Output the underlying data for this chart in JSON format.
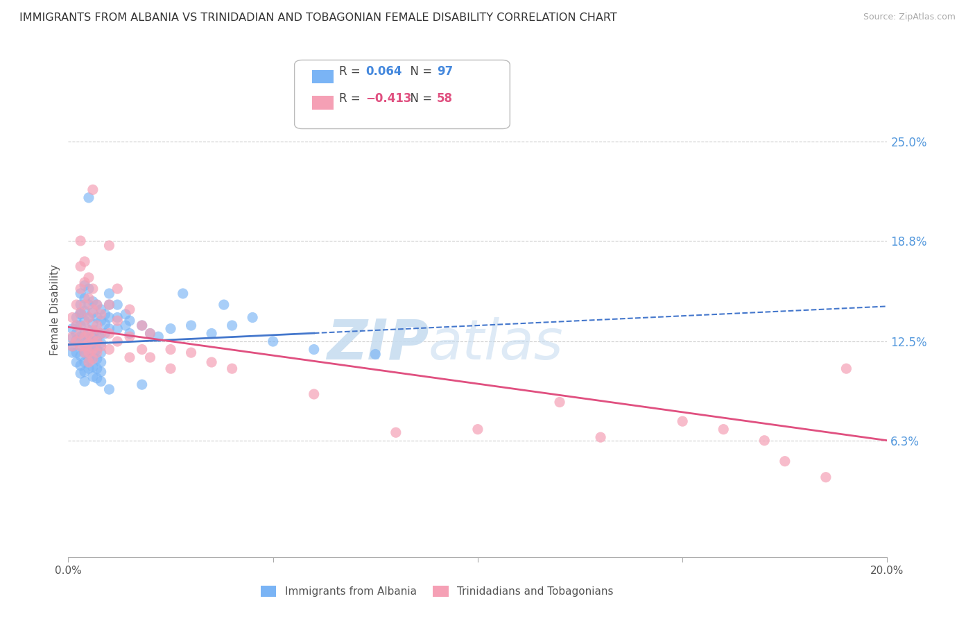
{
  "title": "IMMIGRANTS FROM ALBANIA VS TRINIDADIAN AND TOBAGONIAN FEMALE DISABILITY CORRELATION CHART",
  "source": "Source: ZipAtlas.com",
  "ylabel": "Female Disability",
  "albania_color": "#7ab4f5",
  "trinidad_color": "#f5a0b5",
  "albania_trend_color": "#4477cc",
  "trinidad_trend_color": "#e05080",
  "watermark_zip": "ZIP",
  "watermark_atlas": "atlas",
  "xlim": [
    0.0,
    0.2
  ],
  "ylim": [
    -0.01,
    0.3
  ],
  "ytick_vals": [
    0.063,
    0.125,
    0.188,
    0.25
  ],
  "ytick_labels": [
    "6.3%",
    "12.5%",
    "18.8%",
    "25.0%"
  ],
  "blue_trend": [
    0.123,
    0.147
  ],
  "pink_trend": [
    0.134,
    0.063
  ],
  "blue_scatter": [
    [
      0.001,
      0.127
    ],
    [
      0.001,
      0.133
    ],
    [
      0.001,
      0.118
    ],
    [
      0.001,
      0.122
    ],
    [
      0.002,
      0.14
    ],
    [
      0.002,
      0.13
    ],
    [
      0.002,
      0.118
    ],
    [
      0.002,
      0.112
    ],
    [
      0.002,
      0.126
    ],
    [
      0.002,
      0.135
    ],
    [
      0.003,
      0.148
    ],
    [
      0.003,
      0.142
    ],
    [
      0.003,
      0.135
    ],
    [
      0.003,
      0.128
    ],
    [
      0.003,
      0.122
    ],
    [
      0.003,
      0.116
    ],
    [
      0.003,
      0.11
    ],
    [
      0.003,
      0.105
    ],
    [
      0.003,
      0.155
    ],
    [
      0.003,
      0.143
    ],
    [
      0.004,
      0.152
    ],
    [
      0.004,
      0.144
    ],
    [
      0.004,
      0.138
    ],
    [
      0.004,
      0.13
    ],
    [
      0.004,
      0.124
    ],
    [
      0.004,
      0.118
    ],
    [
      0.004,
      0.112
    ],
    [
      0.004,
      0.106
    ],
    [
      0.004,
      0.1
    ],
    [
      0.004,
      0.16
    ],
    [
      0.005,
      0.158
    ],
    [
      0.005,
      0.148
    ],
    [
      0.005,
      0.14
    ],
    [
      0.005,
      0.132
    ],
    [
      0.005,
      0.126
    ],
    [
      0.005,
      0.12
    ],
    [
      0.005,
      0.114
    ],
    [
      0.005,
      0.108
    ],
    [
      0.005,
      0.215
    ],
    [
      0.006,
      0.15
    ],
    [
      0.006,
      0.143
    ],
    [
      0.006,
      0.136
    ],
    [
      0.006,
      0.128
    ],
    [
      0.006,
      0.122
    ],
    [
      0.006,
      0.115
    ],
    [
      0.006,
      0.109
    ],
    [
      0.006,
      0.103
    ],
    [
      0.007,
      0.148
    ],
    [
      0.007,
      0.14
    ],
    [
      0.007,
      0.132
    ],
    [
      0.007,
      0.126
    ],
    [
      0.007,
      0.12
    ],
    [
      0.007,
      0.114
    ],
    [
      0.007,
      0.108
    ],
    [
      0.007,
      0.102
    ],
    [
      0.008,
      0.145
    ],
    [
      0.008,
      0.138
    ],
    [
      0.008,
      0.13
    ],
    [
      0.008,
      0.124
    ],
    [
      0.008,
      0.118
    ],
    [
      0.008,
      0.112
    ],
    [
      0.008,
      0.106
    ],
    [
      0.008,
      0.1
    ],
    [
      0.009,
      0.142
    ],
    [
      0.009,
      0.136
    ],
    [
      0.009,
      0.13
    ],
    [
      0.01,
      0.155
    ],
    [
      0.01,
      0.148
    ],
    [
      0.01,
      0.14
    ],
    [
      0.01,
      0.133
    ],
    [
      0.01,
      0.095
    ],
    [
      0.012,
      0.148
    ],
    [
      0.012,
      0.14
    ],
    [
      0.012,
      0.133
    ],
    [
      0.014,
      0.142
    ],
    [
      0.014,
      0.135
    ],
    [
      0.015,
      0.138
    ],
    [
      0.015,
      0.13
    ],
    [
      0.018,
      0.135
    ],
    [
      0.018,
      0.098
    ],
    [
      0.02,
      0.13
    ],
    [
      0.022,
      0.128
    ],
    [
      0.025,
      0.133
    ],
    [
      0.028,
      0.155
    ],
    [
      0.03,
      0.135
    ],
    [
      0.035,
      0.13
    ],
    [
      0.038,
      0.148
    ],
    [
      0.04,
      0.135
    ],
    [
      0.045,
      0.14
    ],
    [
      0.05,
      0.125
    ],
    [
      0.06,
      0.12
    ],
    [
      0.075,
      0.117
    ]
  ],
  "pink_scatter": [
    [
      0.001,
      0.128
    ],
    [
      0.001,
      0.14
    ],
    [
      0.001,
      0.122
    ],
    [
      0.002,
      0.148
    ],
    [
      0.002,
      0.135
    ],
    [
      0.002,
      0.125
    ],
    [
      0.003,
      0.188
    ],
    [
      0.003,
      0.172
    ],
    [
      0.003,
      0.158
    ],
    [
      0.003,
      0.143
    ],
    [
      0.003,
      0.13
    ],
    [
      0.003,
      0.122
    ],
    [
      0.004,
      0.175
    ],
    [
      0.004,
      0.162
    ],
    [
      0.004,
      0.148
    ],
    [
      0.004,
      0.135
    ],
    [
      0.004,
      0.128
    ],
    [
      0.004,
      0.122
    ],
    [
      0.004,
      0.118
    ],
    [
      0.005,
      0.165
    ],
    [
      0.005,
      0.152
    ],
    [
      0.005,
      0.14
    ],
    [
      0.005,
      0.13
    ],
    [
      0.005,
      0.124
    ],
    [
      0.005,
      0.118
    ],
    [
      0.005,
      0.112
    ],
    [
      0.006,
      0.22
    ],
    [
      0.006,
      0.158
    ],
    [
      0.006,
      0.145
    ],
    [
      0.006,
      0.132
    ],
    [
      0.006,
      0.126
    ],
    [
      0.006,
      0.12
    ],
    [
      0.006,
      0.114
    ],
    [
      0.007,
      0.148
    ],
    [
      0.007,
      0.135
    ],
    [
      0.007,
      0.125
    ],
    [
      0.007,
      0.118
    ],
    [
      0.008,
      0.142
    ],
    [
      0.008,
      0.13
    ],
    [
      0.008,
      0.122
    ],
    [
      0.01,
      0.185
    ],
    [
      0.01,
      0.148
    ],
    [
      0.01,
      0.13
    ],
    [
      0.01,
      0.12
    ],
    [
      0.012,
      0.158
    ],
    [
      0.012,
      0.138
    ],
    [
      0.012,
      0.125
    ],
    [
      0.015,
      0.145
    ],
    [
      0.015,
      0.128
    ],
    [
      0.015,
      0.115
    ],
    [
      0.018,
      0.135
    ],
    [
      0.018,
      0.12
    ],
    [
      0.02,
      0.13
    ],
    [
      0.02,
      0.115
    ],
    [
      0.025,
      0.12
    ],
    [
      0.025,
      0.108
    ],
    [
      0.03,
      0.118
    ],
    [
      0.035,
      0.112
    ],
    [
      0.04,
      0.108
    ],
    [
      0.06,
      0.092
    ],
    [
      0.08,
      0.068
    ],
    [
      0.1,
      0.07
    ],
    [
      0.12,
      0.087
    ],
    [
      0.13,
      0.065
    ],
    [
      0.15,
      0.075
    ],
    [
      0.16,
      0.07
    ],
    [
      0.17,
      0.063
    ],
    [
      0.175,
      0.05
    ],
    [
      0.185,
      0.04
    ],
    [
      0.19,
      0.108
    ]
  ]
}
